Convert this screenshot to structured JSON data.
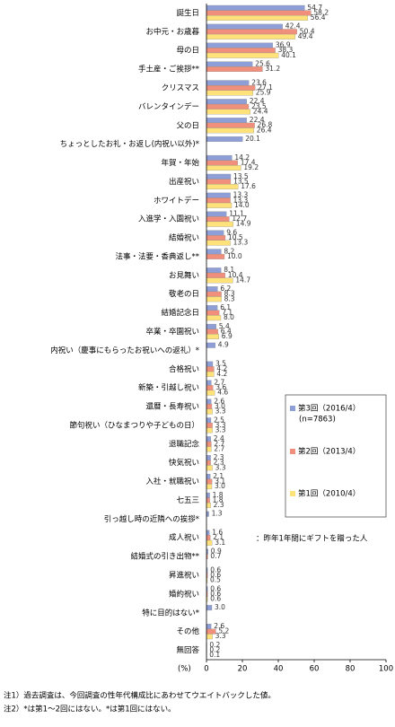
{
  "chart_data": {
    "type": "barh",
    "categories": [
      "誕生日",
      "お中元・お歳暮",
      "母の日",
      "手土産・ご挨拶**",
      "クリスマス",
      "バレンタインデー",
      "父の日",
      "ちょっとしたお礼・お返し(内祝い以外)*",
      "年賀・年始",
      "出産祝い",
      "ホワイトデー",
      "入進学・入園祝い",
      "結婚祝い",
      "法事・法要・香典返し**",
      "お見舞い",
      "敬老の日",
      "結婚記念日",
      "卒業・卒園祝い",
      "内祝い（慶事にもらったお祝いへの返礼）*",
      "合格祝い",
      "新築・引越し祝い",
      "還暦・長寿祝い",
      "節句祝い（ひなまつりや子どもの日）",
      "退職記念",
      "快気祝い",
      "入社・就職祝い",
      "七五三",
      "引っ越し時の近隣への挨拶*",
      "成人祝い",
      "結婚式の引き出物**",
      "昇進祝い",
      "婚約祝い",
      "特に目的はない*",
      "その他",
      "無回答"
    ],
    "series": [
      {
        "name": "第3回（2016/4）",
        "color": "#8e9ed6",
        "values": [
          54.7,
          42.4,
          36.9,
          25.6,
          23.6,
          22.4,
          22.4,
          20.1,
          14.2,
          13.5,
          13.3,
          11.1,
          9.6,
          8.2,
          8.1,
          6.2,
          6.1,
          5.4,
          4.9,
          3.5,
          2.7,
          2.6,
          2.5,
          2.4,
          2.3,
          2.1,
          1.8,
          1.3,
          1.6,
          0.9,
          0.6,
          0.6,
          3.0,
          2.6,
          0.2
        ],
        "value_labels": [
          "54.7",
          "42.4",
          "36.9",
          "25.6",
          "23.6",
          "22.4",
          "22.4",
          "20.1",
          "14.2",
          "13.5",
          "13.3",
          "11.1",
          "9.6",
          "8.2",
          "8.1",
          "6.2",
          "6.1",
          "5.4",
          "4.9",
          "3.5",
          "2.7",
          "2.6",
          "2.5",
          "2.4",
          "2.3",
          "2.1",
          "1.8",
          "1.3",
          "1.6",
          "0.9",
          "0.6",
          "0.6",
          "3.0",
          "2.6",
          "0.2"
        ]
      },
      {
        "name": "第2回（2013/4）",
        "color": "#f0907c",
        "values": [
          58.2,
          50.4,
          38.3,
          31.2,
          27.1,
          23.5,
          26.8,
          null,
          17.4,
          13.5,
          13.3,
          12.7,
          10.5,
          10.0,
          10.4,
          8.3,
          7.1,
          6.4,
          null,
          4.2,
          3.6,
          3.0,
          3.3,
          2.7,
          2.3,
          3.1,
          1.8,
          null,
          2.1,
          0.7,
          0.6,
          0.6,
          null,
          5.2,
          0.2
        ],
        "value_labels": [
          "58.2",
          "50.4",
          "38.3",
          "31.2",
          "27.1",
          "23.5",
          "26.8",
          null,
          "17.4",
          "13.5",
          "13.3",
          "12.7",
          "10.5",
          "10.0",
          "10.4",
          "8.3",
          "7.1",
          "6.4",
          null,
          "4.2",
          "3.6",
          "3.0",
          "3.3",
          "2.7",
          "2.3",
          "3.1",
          "1.8",
          null,
          "2.1",
          "0.7",
          "0.6",
          "0.6",
          null,
          "5.2",
          "0.2"
        ]
      },
      {
        "name": "第1回（2010/4）",
        "color": "#ffe27a",
        "values": [
          56.4,
          49.4,
          40.1,
          null,
          25.9,
          24.4,
          26.4,
          null,
          19.2,
          17.6,
          14.0,
          14.9,
          13.3,
          null,
          14.7,
          8.3,
          8.0,
          6.9,
          null,
          4.2,
          4.6,
          3.3,
          3.3,
          2.7,
          3.3,
          3.0,
          2.3,
          null,
          3.1,
          null,
          0.5,
          0.6,
          null,
          3.3,
          0.1
        ],
        "value_labels": [
          "56.4",
          "49.4",
          "40.1",
          null,
          "25.9",
          "24.4",
          "26.4",
          null,
          "19.2",
          "17.6",
          "14.0",
          "14.9",
          "13.3",
          null,
          "14.7",
          "8.3",
          "8.0",
          "6.9",
          null,
          "4.2",
          "4.6",
          "3.3",
          "3.3",
          "2.7",
          "3.3",
          "3.0",
          "2.3",
          null,
          "3.1",
          null,
          "0.5",
          "0.6",
          null,
          "3.3",
          "0.1"
        ]
      }
    ],
    "sample_note": "(n=7863)",
    "annotation": "：昨年1年間にギフトを贈った人",
    "xlabel": "(%)",
    "xlim": [
      0,
      100
    ],
    "xticks": [
      0,
      20,
      40,
      60,
      80,
      100
    ],
    "footnotes": [
      "注1）過去調査は、今回調査の性年代構成比にあわせてウエイトバックした値。",
      "注2）*は第1～2回にはない。*は第1回にはない。"
    ]
  }
}
